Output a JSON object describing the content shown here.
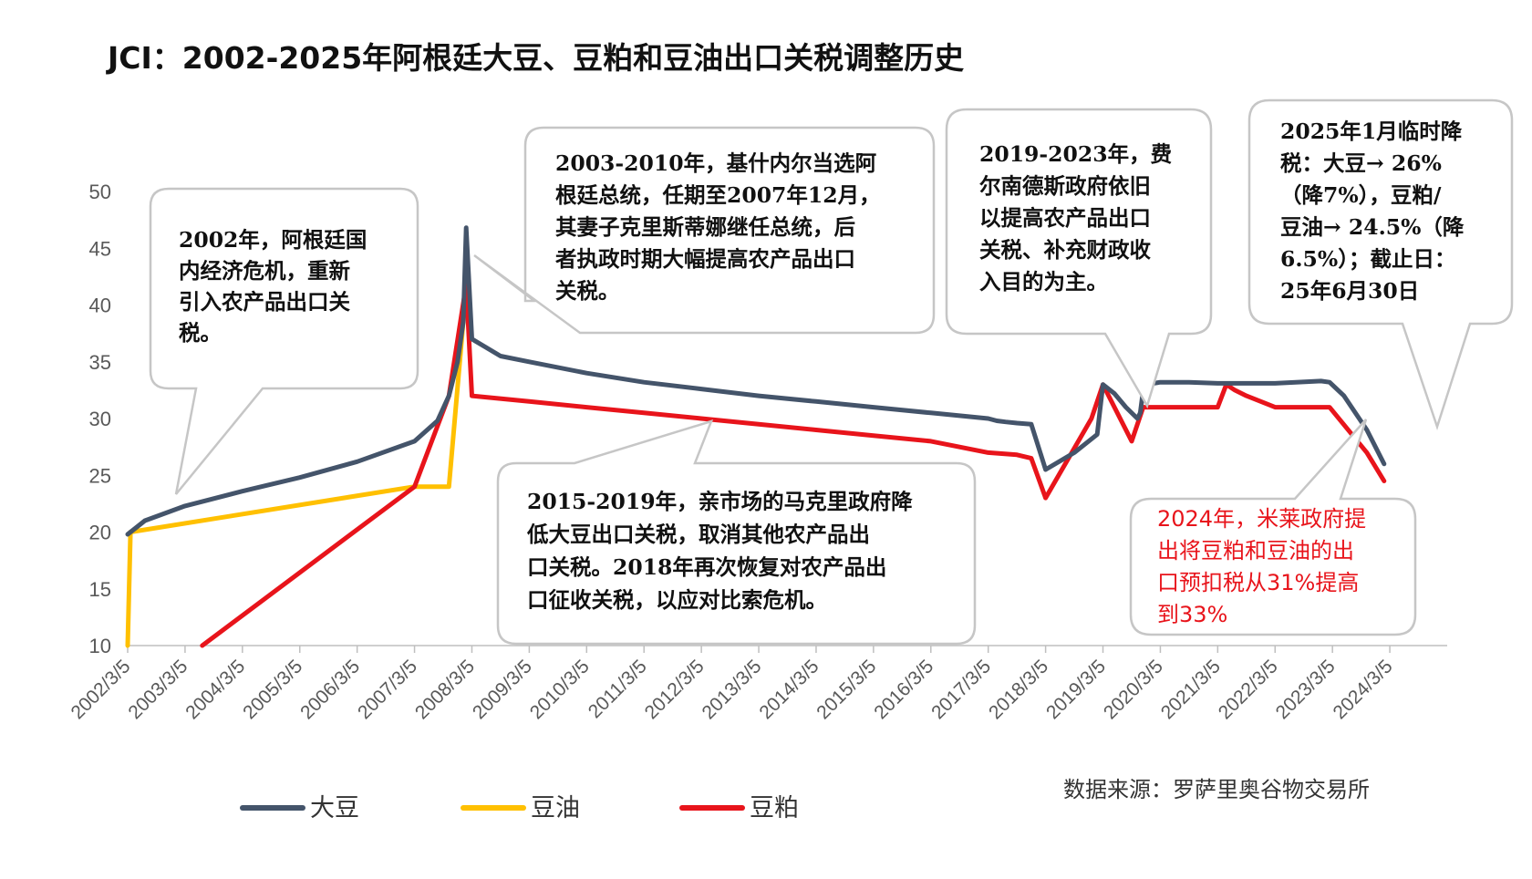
{
  "title": "JCI：2002-2025年阿根廷大豆、豆粕和豆油出口关税调整历史",
  "source": "数据来源：罗萨里奥谷物交易所",
  "colors": {
    "soybean": "#44546a",
    "oil": "#ffc000",
    "meal": "#e8141b",
    "axis": "#bfbfbf",
    "bubble_border": "#c6c6c6"
  },
  "chart_data": {
    "type": "line",
    "title": "JCI：2002-2025年阿根廷大豆、豆粕和豆油出口关税调整历史",
    "xlabel": "",
    "ylabel": "",
    "ylim": [
      10,
      50
    ],
    "yticks": [
      "10",
      "15",
      "20",
      "25",
      "30",
      "35",
      "40",
      "45",
      "50"
    ],
    "xlim": [
      2002.0,
      2025.0
    ],
    "xticks": [
      "2002/3/5",
      "2003/3/5",
      "2004/3/5",
      "2005/3/5",
      "2006/3/5",
      "2007/3/5",
      "2008/3/5",
      "2009/3/5",
      "2010/3/5",
      "2011/3/5",
      "2012/3/5",
      "2013/3/5",
      "2014/3/5",
      "2015/3/5",
      "2016/3/5",
      "2017/3/5",
      "2018/3/5",
      "2019/3/5",
      "2020/3/5",
      "2021/3/5",
      "2022/3/5",
      "2023/3/5",
      "2024/3/5"
    ],
    "xtick_positions": [
      2002.0,
      2003.0,
      2004.0,
      2005.0,
      2006.0,
      2007.0,
      2008.0,
      2009.0,
      2010.0,
      2011.0,
      2012.0,
      2013.0,
      2014.0,
      2015.0,
      2016.0,
      2017.0,
      2018.0,
      2019.0,
      2020.0,
      2021.0,
      2022.0,
      2023.0,
      2024.0
    ],
    "legend_position": "bottom-left",
    "series": [
      {
        "name": "大豆",
        "color": "#44546a",
        "x": [
          2002.0,
          2002.3,
          2003.0,
          2004.0,
          2005.0,
          2006.0,
          2007.0,
          2007.4,
          2007.6,
          2007.75,
          2007.85,
          2007.9,
          2008.0,
          2008.5,
          2009.0,
          2010.0,
          2011.0,
          2012.0,
          2013.0,
          2014.0,
          2015.0,
          2016.0,
          2017.0,
          2017.15,
          2017.3,
          2017.5,
          2017.75,
          2018.0,
          2018.5,
          2018.9,
          2019.0,
          2019.2,
          2019.4,
          2019.6,
          2019.65,
          2019.7,
          2019.75,
          2020.0,
          2020.5,
          2021.0,
          2021.5,
          2022.0,
          2022.8,
          2022.95,
          2023.2,
          2023.6,
          2023.9
        ],
        "values": [
          19.8,
          21.0,
          22.3,
          23.6,
          24.8,
          26.2,
          28.0,
          29.8,
          32.0,
          35.0,
          38.5,
          46.8,
          37.0,
          35.5,
          35.0,
          34.0,
          33.2,
          32.6,
          32.0,
          31.5,
          31.0,
          30.5,
          30.0,
          29.8,
          29.7,
          29.6,
          29.5,
          25.5,
          27.0,
          28.6,
          33.0,
          32.2,
          31.0,
          30.0,
          30.5,
          32.5,
          33.0,
          33.2,
          33.2,
          33.1,
          33.1,
          33.1,
          33.3,
          33.2,
          32.0,
          29.0,
          26.0
        ]
      },
      {
        "name": "豆油",
        "color": "#ffc000",
        "x": [
          2002.0,
          2002.05,
          2007.0,
          2007.6,
          2007.9
        ],
        "values": [
          10.0,
          20.0,
          24.0,
          24.0,
          41.5
        ]
      },
      {
        "name": "豆粕",
        "color": "#e8141b",
        "x": [
          2003.3,
          2007.0,
          2007.6,
          2007.9,
          2008.0,
          2009.0,
          2010.0,
          2011.0,
          2012.0,
          2013.0,
          2014.0,
          2015.0,
          2016.0,
          2017.0,
          2017.5,
          2017.75,
          2018.0,
          2018.8,
          2019.0,
          2019.2,
          2019.5,
          2019.7,
          2019.8,
          2020.0,
          2020.5,
          2021.0,
          2021.15,
          2021.3,
          2021.5,
          2022.0,
          2022.5,
          2022.95,
          2023.6,
          2023.9
        ],
        "values": [
          10.0,
          24.0,
          32.0,
          41.8,
          32.0,
          31.5,
          31.0,
          30.5,
          30.0,
          29.5,
          29.0,
          28.5,
          28.0,
          27.0,
          26.8,
          26.5,
          23.0,
          30.0,
          33.0,
          31.0,
          28.0,
          31.0,
          31.0,
          31.0,
          31.0,
          31.0,
          33.0,
          32.5,
          32.0,
          31.0,
          31.0,
          31.0,
          27.0,
          24.5
        ]
      }
    ]
  },
  "annotations": [
    {
      "lines": [
        "2002年，阿根廷国",
        "内经济危机，重新",
        "引入农产品出口关",
        "税。"
      ]
    },
    {
      "lines": [
        "2003-2010年，基什内尔当选阿",
        "根廷总统，任期至2007年12月，",
        "其妻子克里斯蒂娜继任总统，后",
        "者执政时期大幅提高农产品出口",
        "关税。"
      ]
    },
    {
      "lines": [
        "2015-2019年，亲市场的马克里政府降",
        "低大豆出口关税，取消其他农产品出",
        "口关税。2018年再次恢复对农产品出",
        "口征收关税，以应对比索危机。"
      ]
    },
    {
      "lines": [
        "2019-2023年，费",
        "尔南德斯政府依旧",
        "以提高农产品出口",
        "关税、补充财政收",
        "入目的为主。"
      ]
    },
    {
      "lines": [
        "2025年1月临时降",
        "税：大豆→ 26%",
        "（降7%），豆粕/",
        "豆油→ 24.5%（降",
        "6.5%）；截止日：",
        "25年6月30日"
      ]
    },
    {
      "lines": [
        "2024年，米莱政府提",
        "出将豆粕和豆油的出",
        "口预扣税从31%提高",
        "到33%"
      ]
    }
  ]
}
